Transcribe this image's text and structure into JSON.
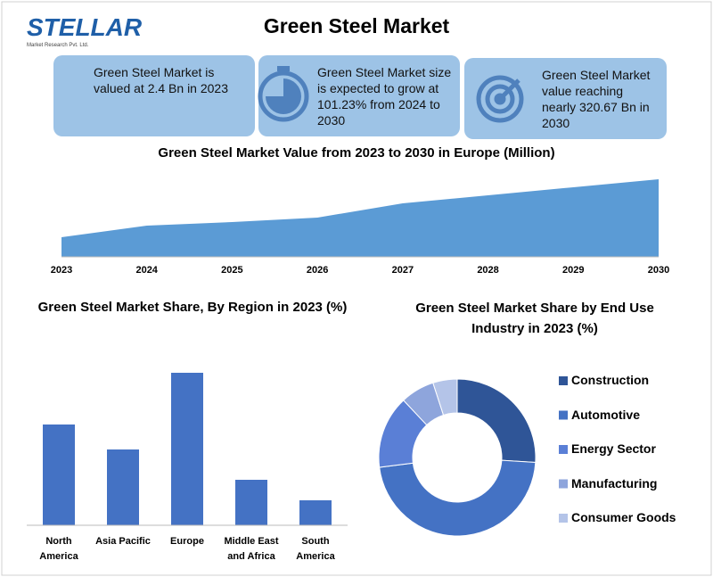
{
  "logo": {
    "name": "STELLAR",
    "tagline": "Market Research Pvt. Ltd."
  },
  "title": "Green Steel Market",
  "highlights": [
    "Green Steel Market is valued at 2.4 Bn in 2023",
    "Green Steel Market size is expected to grow at 101.23% from 2024 to 2030",
    "Green Steel Market value reaching nearly 320.67 Bn in 2030"
  ],
  "chart_data": [
    {
      "type": "area",
      "title": "Green Steel Market Value from 2023 to 2030 in Europe (Million)",
      "categories": [
        "2023",
        "2024",
        "2025",
        "2026",
        "2027",
        "2028",
        "2029",
        "2030"
      ],
      "values": [
        22,
        35,
        39,
        44,
        60,
        69,
        78,
        87
      ],
      "color": "#5b9bd5",
      "ylim": [
        0,
        100
      ]
    },
    {
      "type": "bar",
      "title": "Green Steel Market Share, By Region in 2023 (%)",
      "categories": [
        "North America",
        "Asia Pacific",
        "Europe",
        "Middle East and Africa",
        "South America"
      ],
      "values": [
        113,
        85,
        171,
        51,
        28
      ],
      "color": "#4472c4",
      "ylim": [
        0,
        180
      ]
    },
    {
      "type": "pie",
      "title": "Green Steel Market Share by End Use Industry in 2023 (%)",
      "categories": [
        "Construction",
        "Automotive",
        "Energy Sector",
        "Manufacturing",
        "Consumer Goods"
      ],
      "values": [
        26,
        47,
        15,
        7,
        5
      ],
      "colors": [
        "#2f5597",
        "#4472c4",
        "#5a7fd6",
        "#8ea5dc",
        "#b4c4e8"
      ],
      "legend": "right"
    }
  ]
}
